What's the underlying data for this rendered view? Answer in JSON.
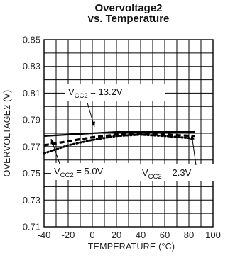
{
  "chart_data": {
    "type": "line",
    "title": [
      "Overvoltage2",
      "vs. Temperature"
    ],
    "xlabel": "TEMPERATURE (°C)",
    "ylabel": "OVERVOLTAGE2 (V)",
    "xlim": [
      -40,
      100
    ],
    "ylim": [
      0.71,
      0.85
    ],
    "x_ticks": [
      -40,
      -20,
      0,
      20,
      40,
      60,
      80,
      100
    ],
    "x_tick_labels": [
      "-40",
      "-20",
      "0",
      "20",
      "40",
      "60",
      "80",
      "100"
    ],
    "y_ticks": [
      0.71,
      0.73,
      0.75,
      0.77,
      0.79,
      0.81,
      0.83,
      0.85
    ],
    "y_tick_labels": [
      "0.71",
      "0.73",
      "0.75",
      "0.77",
      "0.79",
      "0.81",
      "0.83",
      "0.85"
    ],
    "grid": true,
    "series": [
      {
        "name": "VCC2 = 13.2V",
        "line_style": "solid",
        "x": [
          -40,
          -20,
          0,
          20,
          40,
          60,
          85
        ],
        "y": [
          0.778,
          0.779,
          0.78,
          0.781,
          0.781,
          0.781,
          0.781
        ]
      },
      {
        "name": "VCC2 = 5.0V",
        "line_style": "dashed",
        "x": [
          -40,
          -20,
          0,
          20,
          40,
          60,
          85
        ],
        "y": [
          0.771,
          0.774,
          0.777,
          0.779,
          0.78,
          0.779,
          0.778
        ]
      },
      {
        "name": "VCC2 = 2.3V",
        "line_style": "dotted",
        "x": [
          -40,
          -20,
          0,
          20,
          40,
          60,
          85
        ],
        "y": [
          0.765,
          0.771,
          0.775,
          0.778,
          0.779,
          0.778,
          0.776
        ]
      }
    ],
    "annotations": [
      {
        "main": "V",
        "sub": "CC2",
        "rest": " = 13.2V",
        "target_series": 0
      },
      {
        "main": "V",
        "sub": "CC2",
        "rest": " = 5.0V",
        "target_series": 1
      },
      {
        "main": "V",
        "sub": "CC2",
        "rest": " = 2.3V",
        "target_series": 2
      }
    ]
  }
}
